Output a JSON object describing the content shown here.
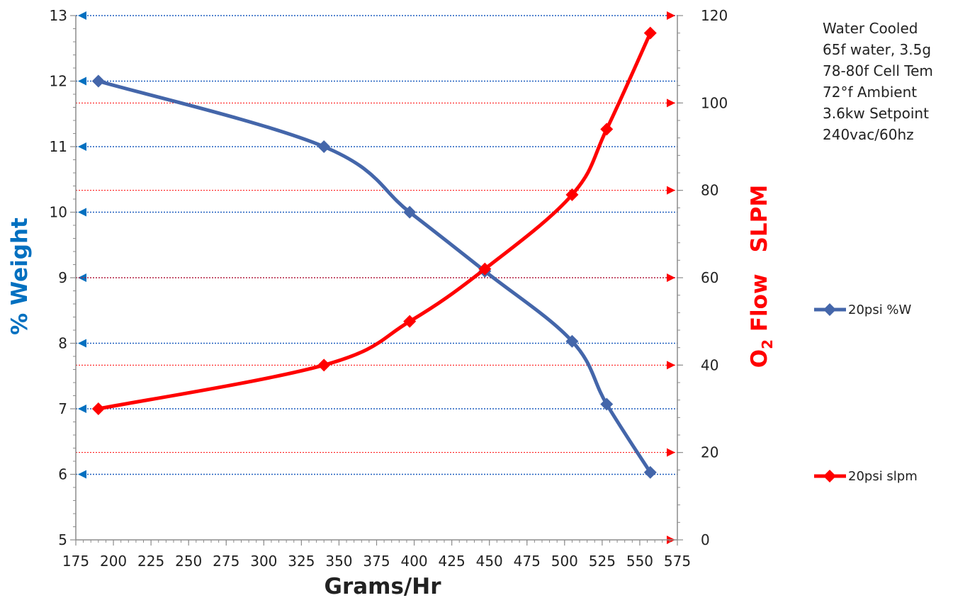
{
  "colors": {
    "left_axis": "#0070c0",
    "right_axis": "#ff0000",
    "series_weight": "#4466aa",
    "series_flow": "#ff0000",
    "left_grid": "#1f5fbf",
    "right_grid": "#ff0000",
    "axis_line": "#8c8c8c"
  },
  "chart_data": {
    "type": "line",
    "xlabel": "Grams/Hr",
    "ylabel_left": "% Weight",
    "ylabel_right": {
      "o2_main": "O",
      "o2_sub": "2",
      "flow": " Flow",
      "unit": "SLPM"
    },
    "xlim": [
      175,
      575
    ],
    "x_ticks": [
      "175",
      "200",
      "225",
      "250",
      "275",
      "300",
      "325",
      "350",
      "375",
      "400",
      "425",
      "450",
      "475",
      "500",
      "525",
      "550",
      "575"
    ],
    "ylim_left": [
      5,
      13
    ],
    "y_ticks_left": [
      "5",
      "6",
      "7",
      "8",
      "9",
      "10",
      "11",
      "12",
      "13"
    ],
    "ylim_right": [
      0,
      120
    ],
    "y_ticks_right": [
      "0",
      "20",
      "40",
      "60",
      "80",
      "100",
      "120"
    ],
    "grid": true,
    "legend_position": "right",
    "series": [
      {
        "name": "20psi %W",
        "axis": "left",
        "marker": "diamond",
        "smooth": true,
        "points": [
          [
            190,
            12
          ],
          [
            340,
            11
          ],
          [
            397,
            10
          ],
          [
            447,
            9.1
          ],
          [
            505,
            8.03
          ],
          [
            528,
            7.07
          ],
          [
            557,
            6.03
          ]
        ]
      },
      {
        "name": "20psi slpm",
        "axis": "right",
        "marker": "diamond",
        "smooth": true,
        "points": [
          [
            190,
            30
          ],
          [
            340,
            40
          ],
          [
            397,
            50
          ],
          [
            447,
            62
          ],
          [
            505,
            79
          ],
          [
            528,
            94
          ],
          [
            557,
            116
          ]
        ]
      }
    ],
    "annotation_lines": [
      "Water Cooled",
      "65f water, 3.5g",
      "78-80f Cell Tem",
      "72°f Ambient",
      "3.6kw Setpoint",
      "240vac/60hz"
    ]
  }
}
